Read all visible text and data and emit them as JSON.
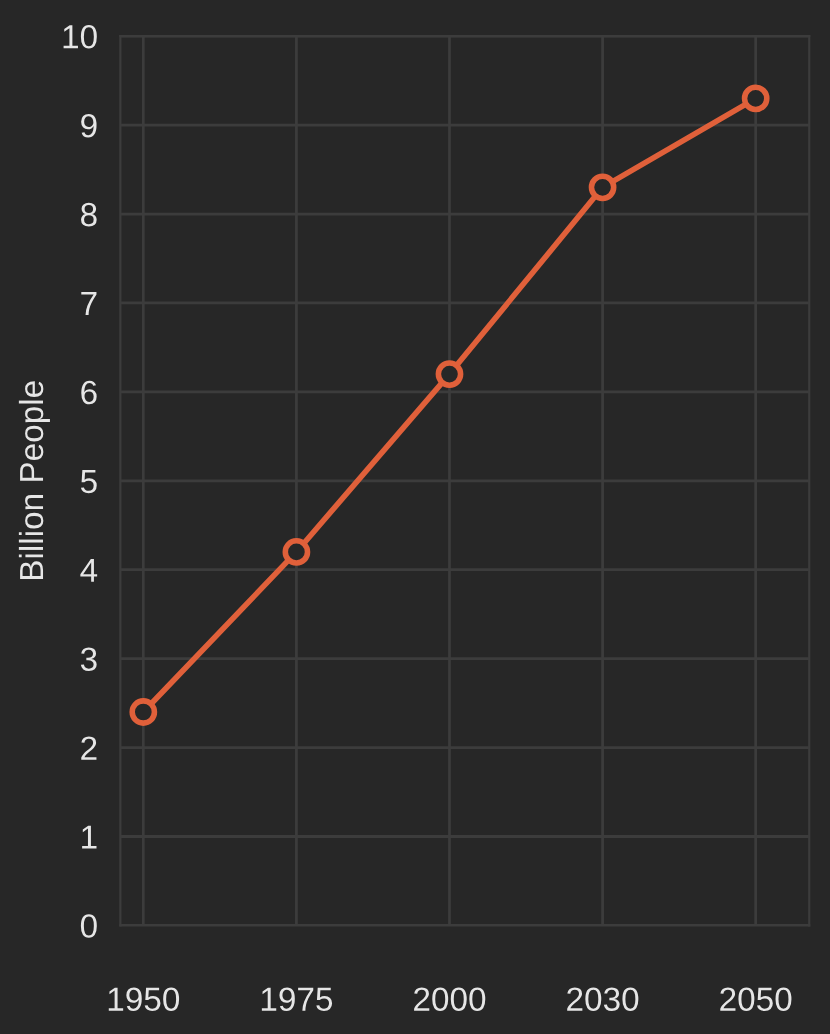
{
  "chart_data": {
    "type": "line",
    "ylabel": "Billion People",
    "categories": [
      "1950",
      "1975",
      "2000",
      "2030",
      "2050"
    ],
    "series": [
      {
        "color": "#e0603a",
        "values": [
          2.4,
          4.2,
          6.2,
          8.3,
          9.3
        ]
      }
    ],
    "ylim": [
      0,
      10
    ],
    "yticks": [
      0,
      1,
      2,
      3,
      4,
      5,
      6,
      7,
      8,
      9,
      10
    ],
    "grid": true,
    "marker": "circle",
    "line_style": "solid"
  }
}
